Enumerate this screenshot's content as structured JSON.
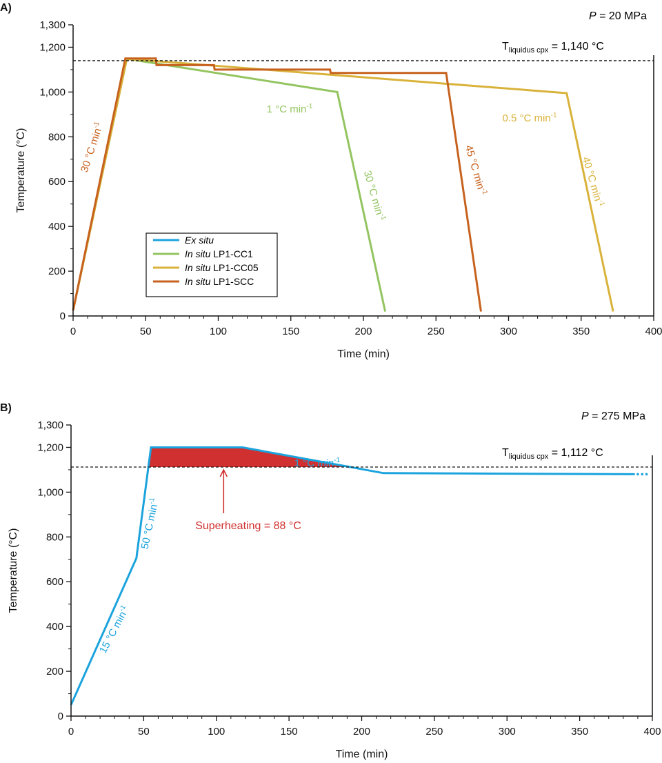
{
  "chart_data": [
    {
      "panel_label": "A)",
      "type": "line",
      "pressure": {
        "symbol": "P",
        "rest": " = 20 MPa"
      },
      "xlabel": "Time (min)",
      "ylabel": "Temperature (°C)",
      "xlim": [
        0,
        400
      ],
      "ylim": [
        0,
        1300
      ],
      "xticks": [
        0,
        50,
        100,
        150,
        200,
        250,
        300,
        350,
        400
      ],
      "xtick_labels": [
        "0",
        "50",
        "100",
        "150",
        "200",
        "250",
        "300",
        "350",
        "400"
      ],
      "yticks": [
        0,
        200,
        400,
        600,
        800,
        1000,
        1200,
        1300
      ],
      "ytick_labels": [
        "0",
        "200",
        "400",
        "600",
        "800",
        "1,000",
        "1,200",
        "1,300"
      ],
      "grid": false,
      "liquidus": {
        "label_main": "T",
        "label_sub": "liquidus cpx",
        "label_rest": " = 1,140 °C",
        "value": 1140
      },
      "legend": {
        "placement": "bottom-left",
        "entries": [
          {
            "italic": "Ex situ",
            "rest": "",
            "color": "#1ba3dd"
          },
          {
            "italic": "In situ",
            "rest": " LP1-CC1",
            "color": "#93c460"
          },
          {
            "italic": "In situ",
            "rest": " LP1-CC05",
            "color": "#d9b23a"
          },
          {
            "italic": "In situ",
            "rest": " LP1-SCC",
            "color": "#c7621e"
          }
        ]
      },
      "series": [
        {
          "name": "In situ LP1-CC1",
          "color": "#93c460",
          "x": [
            0,
            37,
            182,
            215
          ],
          "y": [
            25,
            1148,
            1000,
            20
          ]
        },
        {
          "name": "In situ LP1-CC05",
          "color": "#d9b23a",
          "x": [
            0,
            37,
            340,
            372
          ],
          "y": [
            25,
            1148,
            995,
            20
          ]
        },
        {
          "name": "In situ LP1-SCC",
          "color": "#c7621e",
          "x": [
            0,
            36,
            57,
            57.5,
            97,
            97.5,
            177,
            177.5,
            257,
            281
          ],
          "y": [
            25,
            1150,
            1150,
            1120,
            1120,
            1100,
            1100,
            1085,
            1085,
            20
          ]
        }
      ],
      "annotations": [
        {
          "text": "30 °C min",
          "sup": "-1",
          "color": "#c7621e"
        },
        {
          "text": "1 °C min",
          "sup": "-1",
          "color": "#93c460"
        },
        {
          "text": "30 °C min",
          "sup": "-1",
          "color": "#93c460"
        },
        {
          "text": "45 °C min",
          "sup": "-1",
          "color": "#c7621e"
        },
        {
          "text": "0.5 °C min",
          "sup": "-1",
          "color": "#d9b23a"
        },
        {
          "text": "40 °C min",
          "sup": "-1",
          "color": "#d9b23a"
        }
      ]
    },
    {
      "panel_label": "B)",
      "type": "line",
      "pressure": {
        "symbol": "P",
        "rest": " = 275 MPa"
      },
      "xlabel": "Time (min)",
      "ylabel": "Temperature (°C)",
      "xlim": [
        0,
        400
      ],
      "ylim": [
        0,
        1300
      ],
      "xticks": [
        0,
        50,
        100,
        150,
        200,
        250,
        300,
        350,
        400
      ],
      "xtick_labels": [
        "0",
        "50",
        "100",
        "150",
        "200",
        "250",
        "300",
        "350",
        "400"
      ],
      "yticks": [
        0,
        200,
        400,
        600,
        800,
        1000,
        1200,
        1300
      ],
      "ytick_labels": [
        "0",
        "200",
        "400",
        "600",
        "800",
        "1,000",
        "1,200",
        "1,300"
      ],
      "grid": false,
      "liquidus": {
        "label_main": "T",
        "label_sub": "liquidus cpx",
        "label_rest": " = 1,112 °C",
        "value": 1112
      },
      "superheating": {
        "text": "Superheating = 88 °C",
        "color": "#d0302f",
        "arrow_x": 105
      },
      "series": [
        {
          "name": "",
          "color": "#1ba3dd",
          "x": [
            0,
            45,
            55,
            118,
            215,
            388
          ],
          "y": [
            50,
            705,
            1200,
            1200,
            1085,
            1080
          ]
        }
      ],
      "continuation_dots": {
        "x": [
          390,
          393,
          396
        ],
        "y": 1080
      },
      "annotations": [
        {
          "text": "15 °C min",
          "sup": "-1",
          "color": "#1ba3dd"
        },
        {
          "text": "50 °C min",
          "sup": "-1",
          "color": "#1ba3dd"
        },
        {
          "text": "1 °C min",
          "sup": "-1",
          "color": "#1ba3dd"
        }
      ]
    }
  ]
}
